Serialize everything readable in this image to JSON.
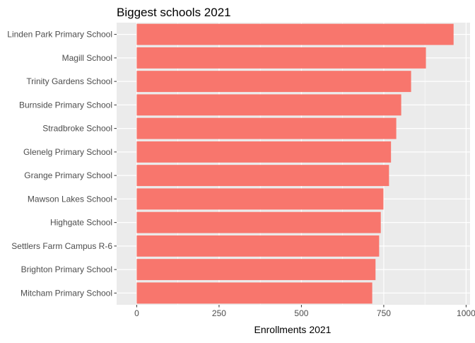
{
  "chart_data": {
    "type": "bar",
    "orientation": "horizontal",
    "title": "Biggest schools 2021",
    "xlabel": "Enrollments 2021",
    "ylabel": "",
    "categories": [
      "Linden Park Primary School",
      "Magill School",
      "Trinity Gardens School",
      "Burnside Primary School",
      "Stradbroke School",
      "Glenelg Primary School",
      "Grange Primary School",
      "Mawson Lakes School",
      "Highgate School",
      "Settlers Farm Campus R-6",
      "Brighton Primary School",
      "Mitcham Primary School"
    ],
    "values": [
      962,
      878,
      833,
      803,
      788,
      772,
      766,
      749,
      741,
      736,
      725,
      715
    ],
    "xlim": [
      -61,
      1012
    ],
    "xticks": [
      0,
      250,
      500,
      750,
      1000
    ],
    "xtick_labels": [
      "0",
      "250",
      "500",
      "750",
      "1000"
    ],
    "grid": true,
    "bar_color": "#F8766D",
    "panel_color": "#EBEBEB",
    "grid_color": "#FFFFFF"
  }
}
